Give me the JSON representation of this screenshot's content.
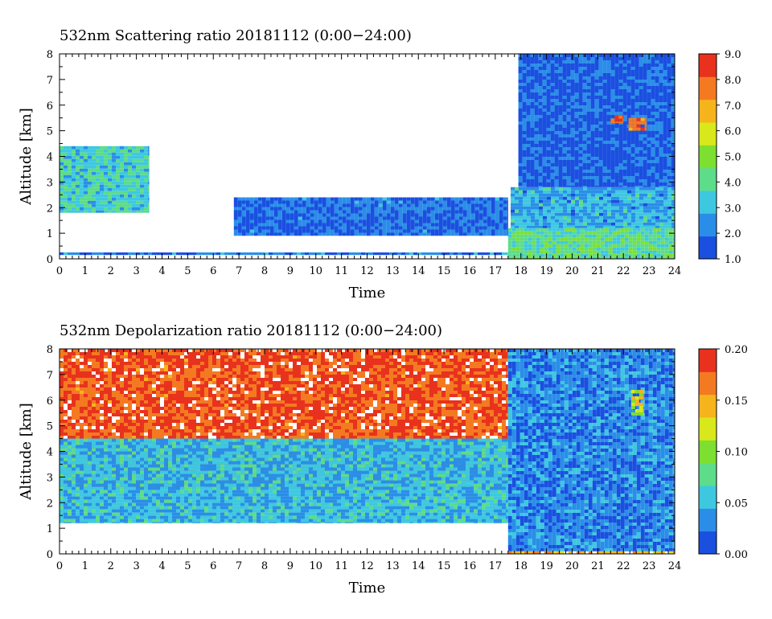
{
  "chart_data": [
    {
      "type": "heatmap",
      "title": "532nm Scattering ratio  20181112 (0:00−24:00)",
      "xlabel": "Time",
      "ylabel": "Altitude [km]",
      "xlim": [
        0,
        24
      ],
      "ylim": [
        0,
        8
      ],
      "x_ticks": [
        "0",
        "1",
        "2",
        "3",
        "4",
        "5",
        "6",
        "7",
        "8",
        "9",
        "10",
        "11",
        "12",
        "13",
        "14",
        "15",
        "16",
        "17",
        "18",
        "19",
        "20",
        "21",
        "22",
        "23",
        "24"
      ],
      "y_ticks": [
        "0",
        "1",
        "2",
        "3",
        "4",
        "5",
        "6",
        "7",
        "8"
      ],
      "colorbar": {
        "min": 1.0,
        "max": 9.0,
        "ticks": [
          "1.0",
          "2.0",
          "3.0",
          "4.0",
          "5.0",
          "6.0",
          "7.0",
          "8.0",
          "9.0"
        ],
        "colors": [
          "#1a4fe0",
          "#2a8ee8",
          "#3ec8e0",
          "#5ddc8a",
          "#7de030",
          "#d8e81a",
          "#f6b41c",
          "#f47a22",
          "#e8321e"
        ]
      },
      "features": [
        {
          "name": "surface layer",
          "t": [
            0,
            17.5
          ],
          "alt": [
            0.15,
            0.25
          ],
          "value": 2.0
        },
        {
          "name": "cloud patches",
          "t": [
            0,
            3.5
          ],
          "alt": [
            1.8,
            4.4
          ],
          "value": 3.5
        },
        {
          "name": "aerosol layer top",
          "t": [
            6.8,
            17.5
          ],
          "alt": [
            0.9,
            2.4
          ],
          "value": 1.8
        },
        {
          "name": "boundary layer",
          "t": [
            17.5,
            24
          ],
          "alt": [
            0,
            1.2
          ],
          "value": 4.0
        },
        {
          "name": "mid-level layer",
          "t": [
            17.6,
            24
          ],
          "alt": [
            1.2,
            2.8
          ],
          "value": 2.8
        },
        {
          "name": "upper background",
          "t": [
            17.9,
            24
          ],
          "alt": [
            2.8,
            8
          ],
          "value": 1.6
        },
        {
          "name": "cloud at 21.8h",
          "t": [
            21.5,
            22.0
          ],
          "alt": [
            5.3,
            5.6
          ],
          "value": 8.0
        },
        {
          "name": "cloud at 22.5h",
          "t": [
            22.2,
            22.9
          ],
          "alt": [
            5.0,
            5.5
          ],
          "value": 8.0
        }
      ]
    },
    {
      "type": "heatmap",
      "title": "532nm Depolarization ratio  20181112 (0:00−24:00)",
      "xlabel": "Time",
      "ylabel": "Altitude [km]",
      "xlim": [
        0,
        24
      ],
      "ylim": [
        0,
        8
      ],
      "x_ticks": [
        "0",
        "1",
        "2",
        "3",
        "4",
        "5",
        "6",
        "7",
        "8",
        "9",
        "10",
        "11",
        "12",
        "13",
        "14",
        "15",
        "16",
        "17",
        "18",
        "19",
        "20",
        "21",
        "22",
        "23",
        "24"
      ],
      "y_ticks": [
        "0",
        "1",
        "2",
        "3",
        "4",
        "5",
        "6",
        "7",
        "8"
      ],
      "colorbar": {
        "min": 0.0,
        "max": 0.2,
        "ticks": [
          "0.00",
          "0.05",
          "0.10",
          "0.15",
          "0.20"
        ],
        "colors": [
          "#1a4fe0",
          "#2a8ee8",
          "#3ec8e0",
          "#5ddc8a",
          "#7de030",
          "#d8e81a",
          "#f6b41c",
          "#f47a22",
          "#e8321e"
        ]
      },
      "features": [
        {
          "name": "noisy upper region",
          "t": [
            0,
            17.5
          ],
          "alt": [
            2.5,
            8
          ],
          "value": 0.18
        },
        {
          "name": "lower noise boundary",
          "t": [
            0,
            17.5
          ],
          "alt": [
            1.2,
            4.5
          ],
          "value": 0.05
        },
        {
          "name": "evening low-depol layer",
          "t": [
            17.5,
            24
          ],
          "alt": [
            0.1,
            8
          ],
          "value": 0.03
        },
        {
          "name": "surface band",
          "t": [
            17.5,
            24
          ],
          "alt": [
            0,
            0.1
          ],
          "value": 0.15
        },
        {
          "name": "ice feature at 22.5h",
          "t": [
            22.3,
            22.8
          ],
          "alt": [
            5.4,
            6.4
          ],
          "value": 0.12
        }
      ]
    }
  ]
}
